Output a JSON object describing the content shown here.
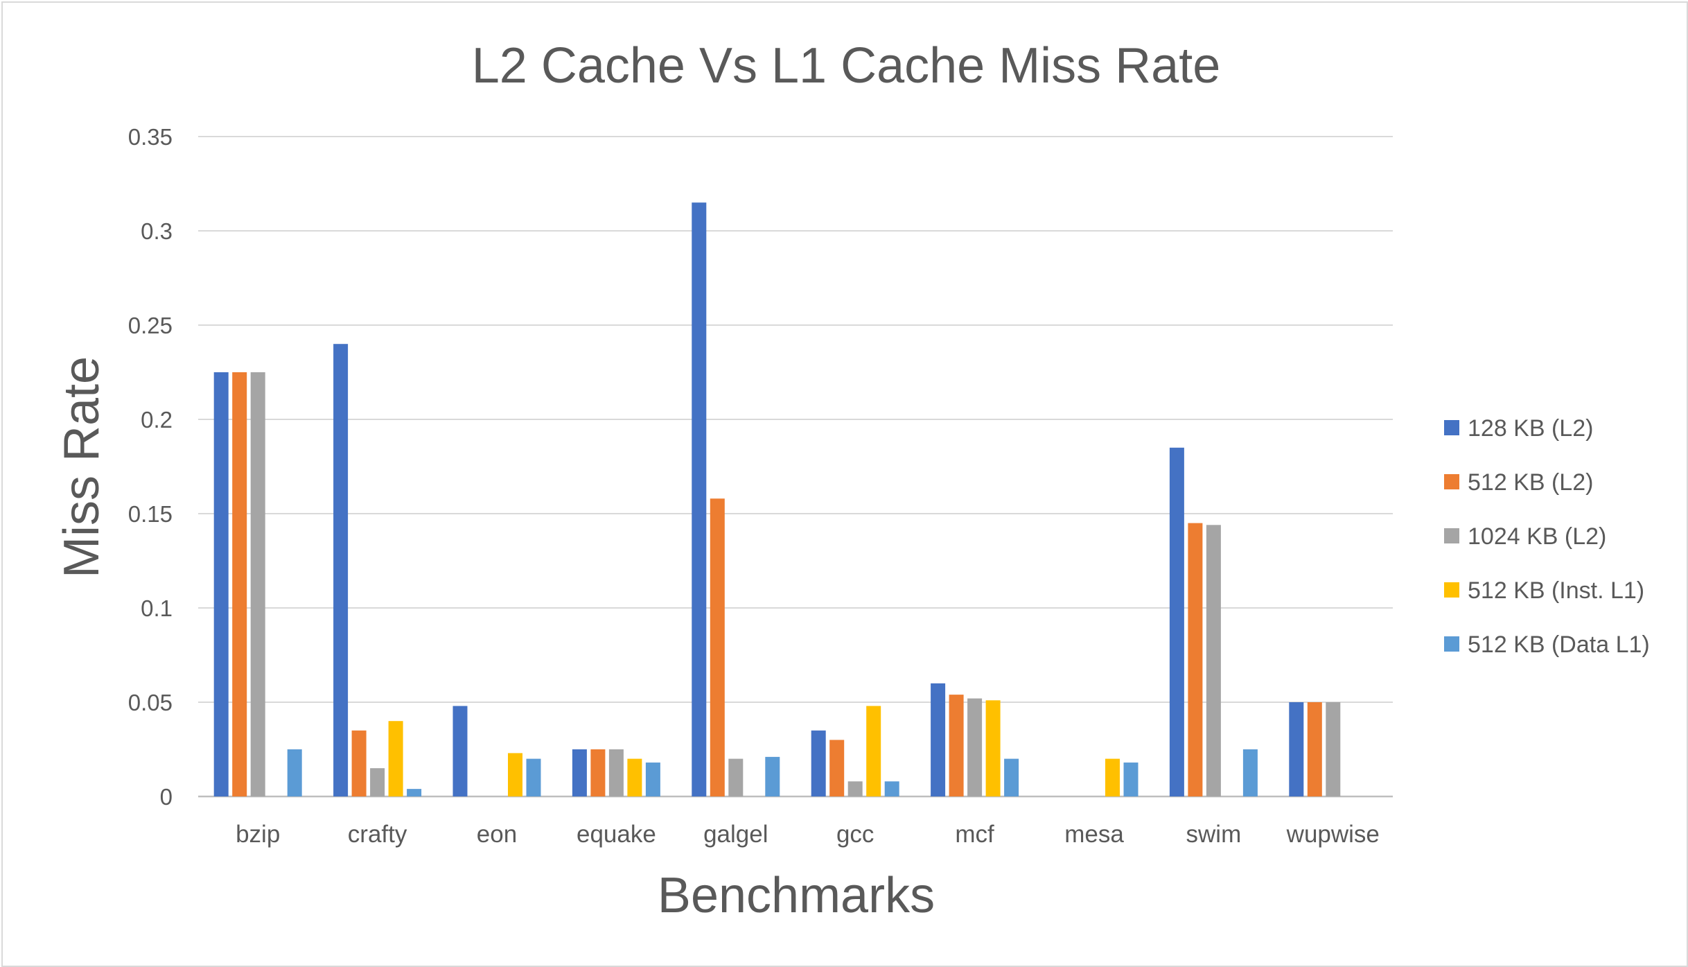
{
  "chart_data": {
    "type": "bar",
    "title": "L2 Cache Vs L1 Cache  Miss Rate",
    "xlabel": "Benchmarks",
    "ylabel": "Miss Rate",
    "ylim": [
      0,
      0.35
    ],
    "yticks": [
      0,
      0.05,
      0.1,
      0.15,
      0.2,
      0.25,
      0.3,
      0.35
    ],
    "ytick_labels": [
      "0",
      "0.05",
      "0.1",
      "0.15",
      "0.2",
      "0.25",
      "0.3",
      "0.35"
    ],
    "grid": true,
    "legend_position": "right",
    "categories": [
      "bzip",
      "crafty",
      "eon",
      "equake",
      "galgel",
      "gcc",
      "mcf",
      "mesa",
      "swim",
      "wupwise"
    ],
    "series": [
      {
        "name": "128 KB (L2)",
        "color": "#4472c4",
        "values": [
          0.225,
          0.24,
          0.048,
          0.025,
          0.315,
          0.035,
          0.06,
          0,
          0.185,
          0.05
        ]
      },
      {
        "name": "512 KB (L2)",
        "color": "#ed7d31",
        "values": [
          0.225,
          0.035,
          0,
          0.025,
          0.158,
          0.03,
          0.054,
          0,
          0.145,
          0.05
        ]
      },
      {
        "name": "1024 KB (L2)",
        "color": "#a5a5a5",
        "values": [
          0.225,
          0.015,
          0,
          0.025,
          0.02,
          0.008,
          0.052,
          0,
          0.144,
          0.05
        ]
      },
      {
        "name": "512 KB (Inst. L1)",
        "color": "#ffc000",
        "values": [
          0,
          0.04,
          0.023,
          0.02,
          0,
          0.048,
          0.051,
          0.02,
          0,
          0
        ]
      },
      {
        "name": "512 KB (Data L1)",
        "color": "#5b9bd5",
        "values": [
          0.025,
          0.004,
          0.02,
          0.018,
          0.021,
          0.008,
          0.02,
          0.018,
          0.025,
          0
        ]
      }
    ]
  }
}
